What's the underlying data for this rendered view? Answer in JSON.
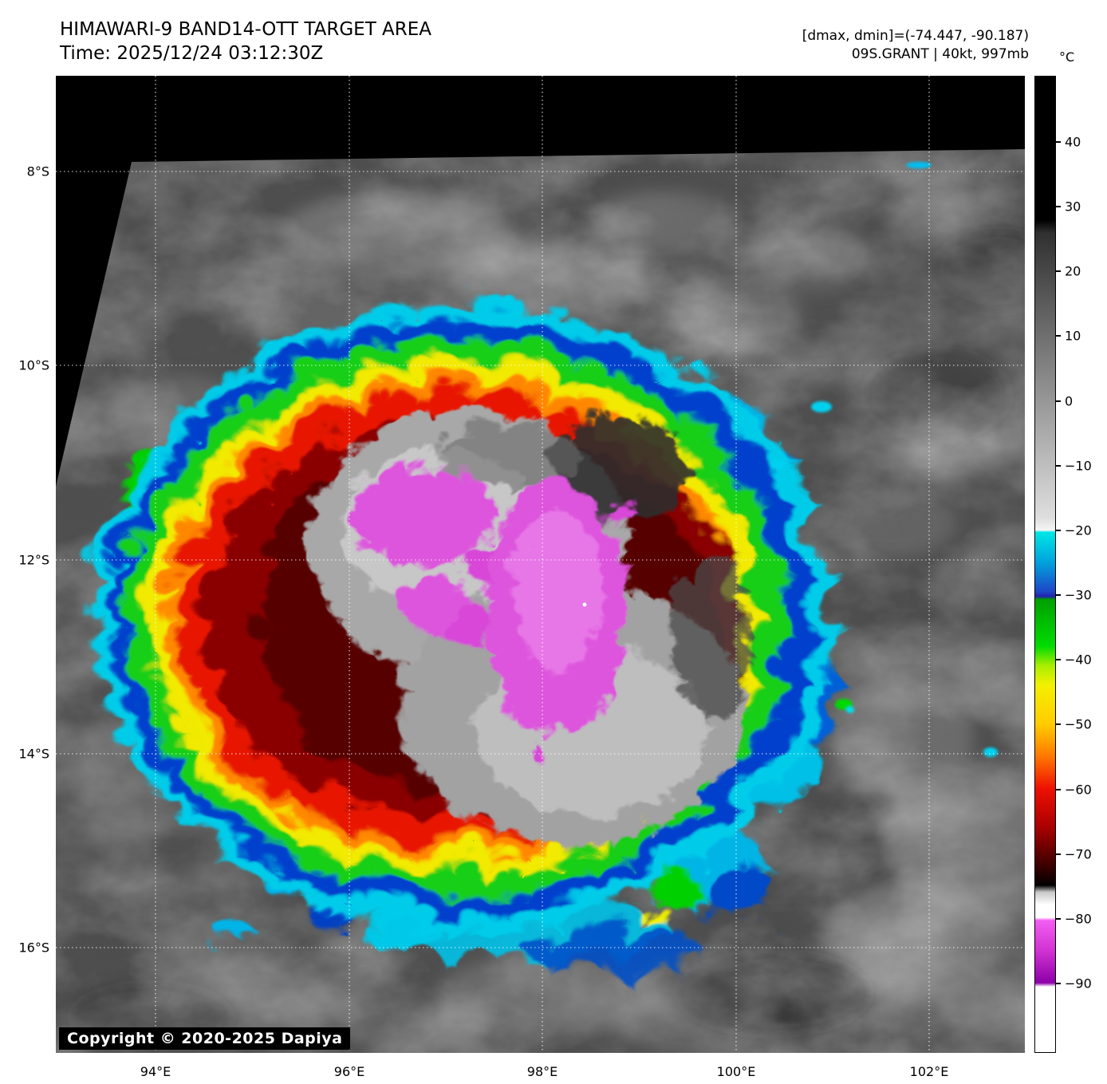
{
  "header": {
    "title": "HIMAWARI-9 BAND14-OTT TARGET AREA",
    "time_line": "Time: 2025/12/24 03:12:30Z",
    "dmax_dmin": "[dmax, dmin]=(-74.447, -90.187)",
    "storm_info": "09S.GRANT | 40kt, 997mb"
  },
  "colorbar": {
    "unit_label": "°C",
    "ticks": [
      "40",
      "30",
      "20",
      "10",
      "0",
      "−10",
      "−20",
      "−30",
      "−40",
      "−50",
      "−60",
      "−70",
      "−80",
      "−90"
    ],
    "stops": [
      {
        "p": 0,
        "c": "#000000"
      },
      {
        "p": 14.7,
        "c": "#000000"
      },
      {
        "p": 16,
        "c": "#303030"
      },
      {
        "p": 45.2,
        "c": "#dedede"
      },
      {
        "p": 46.5,
        "c": "#f5f5f5"
      },
      {
        "p": 46.7,
        "c": "#00e6e6"
      },
      {
        "p": 49.8,
        "c": "#00a2dc"
      },
      {
        "p": 52.8,
        "c": "#1e46c8"
      },
      {
        "p": 53.3,
        "c": "#2222aa"
      },
      {
        "p": 53.6,
        "c": "#00a000"
      },
      {
        "p": 58.4,
        "c": "#00dc00"
      },
      {
        "p": 60.4,
        "c": "#aaee00"
      },
      {
        "p": 62.4,
        "c": "#f4f000"
      },
      {
        "p": 66.4,
        "c": "#ffcc00"
      },
      {
        "p": 69.7,
        "c": "#ff7700"
      },
      {
        "p": 73,
        "c": "#ee1000"
      },
      {
        "p": 77,
        "c": "#a80000"
      },
      {
        "p": 79.6,
        "c": "#5e0000"
      },
      {
        "p": 82.3,
        "c": "#140000"
      },
      {
        "p": 82.9,
        "c": "#000000"
      },
      {
        "p": 83.6,
        "c": "#c8c8c8"
      },
      {
        "p": 84.9,
        "c": "#ffffff"
      },
      {
        "p": 86.2,
        "c": "#ffffff"
      },
      {
        "p": 86.5,
        "c": "#f25ef2"
      },
      {
        "p": 89.6,
        "c": "#d232d2"
      },
      {
        "p": 92.9,
        "c": "#8c00a8"
      },
      {
        "p": 93.3,
        "c": "#ffffff"
      },
      {
        "p": 100,
        "c": "#ffffff"
      }
    ]
  },
  "axes": {
    "lat_ticks": [
      "8°S",
      "10°S",
      "12°S",
      "14°S",
      "16°S"
    ],
    "lon_ticks": [
      "94°E",
      "96°E",
      "98°E",
      "100°E",
      "102°E"
    ]
  },
  "watermark": "Copyright © 2020-2025 Dapiya"
}
